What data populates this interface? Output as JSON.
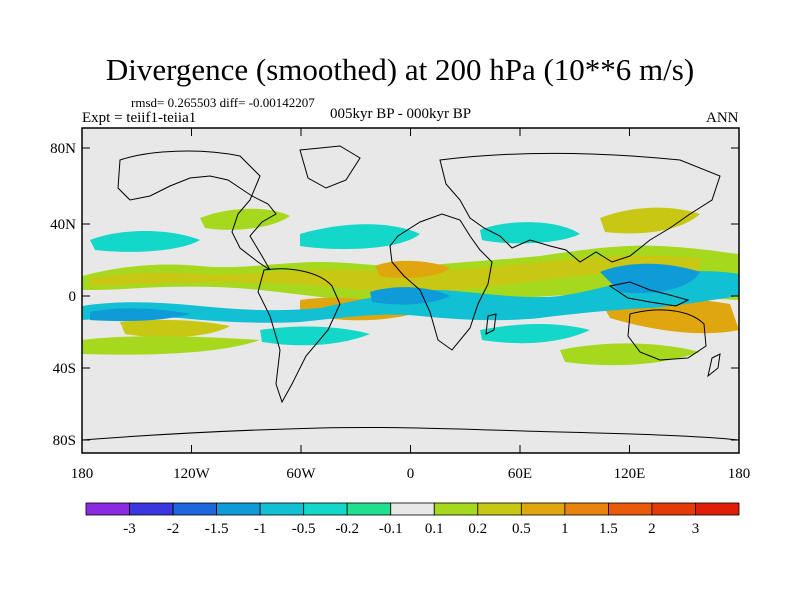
{
  "header": {
    "title": "Divergence (smoothed) at 200 hPa (10**6 m/s)",
    "stats": "rmsd= 0.265503 diff= -0.00142207",
    "experiment": "Expt = teiif1-teiia1",
    "period": "005kyr BP - 000kyr BP",
    "season": "ANN"
  },
  "map": {
    "projection": "cylindrical equidistant",
    "lon_ticks": [
      "180",
      "120W",
      "60W",
      "0",
      "60E",
      "120E",
      "180"
    ],
    "lat_ticks": [
      "80N",
      "40N",
      "0",
      "40S",
      "80S"
    ],
    "background_color": "#e8e8e8",
    "coastline_color": "#000000"
  },
  "colorbar": {
    "labels": [
      "-3",
      "-2",
      "-1.5",
      "-1",
      "-0.5",
      "-0.2",
      "-0.1",
      "0.1",
      "0.2",
      "0.5",
      "1",
      "1.5",
      "2",
      "3"
    ],
    "colors": [
      "#8a2be2",
      "#3a36e0",
      "#1e66dc",
      "#0f9ad8",
      "#11c0d2",
      "#13d7c8",
      "#20e090",
      "#e8e8e8",
      "#a6d81e",
      "#c8c814",
      "#e0a60e",
      "#e8840c",
      "#e85a0a",
      "#e43a08",
      "#e01e08"
    ]
  }
}
